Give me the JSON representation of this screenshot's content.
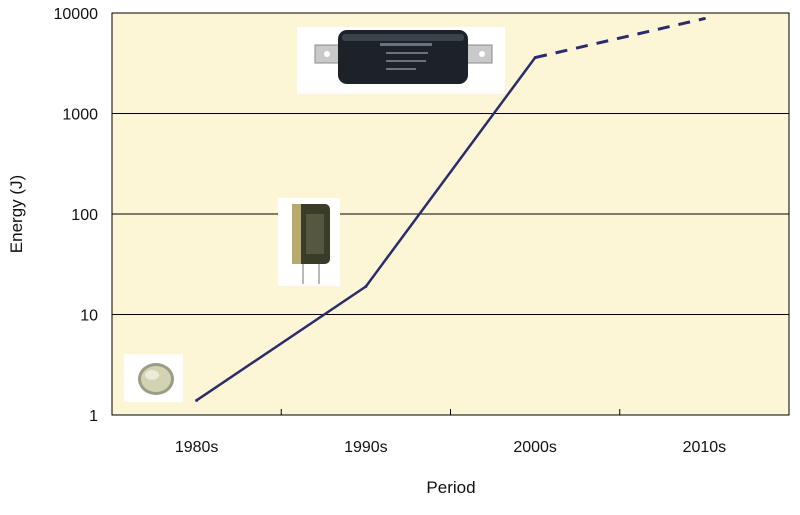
{
  "chart_data": {
    "type": "line",
    "xlabel": "Period",
    "ylabel": "Energy (J)",
    "categories": [
      "1980s",
      "1990s",
      "2000s",
      "2010s"
    ],
    "y_scale": "log",
    "ylim": [
      1,
      10000
    ],
    "y_ticks": [
      {
        "value": 1,
        "label": "1"
      },
      {
        "value": 10,
        "label": "10"
      },
      {
        "value": 100,
        "label": "100"
      },
      {
        "value": 1000,
        "label": "1000"
      },
      {
        "value": 10000,
        "label": "10000"
      }
    ],
    "grid": true,
    "legend": "none",
    "colors": {
      "plot_bg": "#fdf6d6",
      "line": "#2b2c6e",
      "grid": "#000000"
    },
    "series": [
      {
        "points": [
          {
            "x": "1980s",
            "y": 1.4,
            "style": "solid"
          },
          {
            "x": "1990s",
            "y": 19,
            "style": "solid"
          },
          {
            "x": "2000s",
            "y": 3600,
            "style": "solid"
          },
          {
            "x": "2010s",
            "y": 8800,
            "style": "dashed"
          }
        ]
      }
    ],
    "images": [
      {
        "name": "coin-capacitor-icon",
        "category": "1980s"
      },
      {
        "name": "cylindrical-capacitor-icon",
        "category": "1990s"
      },
      {
        "name": "large-capacitor-module-icon",
        "category": "2000s"
      }
    ]
  }
}
